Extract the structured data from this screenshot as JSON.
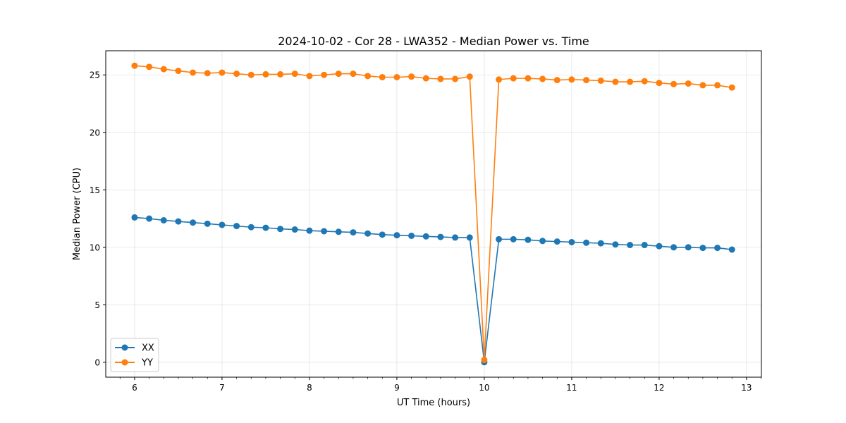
{
  "chart_data": {
    "type": "line",
    "title": "2024-10-02 - Cor 28 - LWA352 - Median Power vs. Time",
    "xlabel": "UT Time (hours)",
    "ylabel": "Median Power (CPU)",
    "xlim": [
      5.67,
      13.17
    ],
    "ylim": [
      -1.3,
      27.1
    ],
    "xticks": [
      6,
      7,
      8,
      9,
      10,
      11,
      12,
      13
    ],
    "yticks": [
      0,
      5,
      10,
      15,
      20,
      25
    ],
    "grid": true,
    "legend_position": "lower-left",
    "x": [
      6.0,
      6.1667,
      6.3333,
      6.5,
      6.6667,
      6.8333,
      7.0,
      7.1667,
      7.3333,
      7.5,
      7.6667,
      7.8333,
      8.0,
      8.1667,
      8.3333,
      8.5,
      8.6667,
      8.8333,
      9.0,
      9.1667,
      9.3333,
      9.5,
      9.6667,
      9.8333,
      10.0,
      10.1667,
      10.3333,
      10.5,
      10.6667,
      10.8333,
      11.0,
      11.1667,
      11.3333,
      11.5,
      11.6667,
      11.8333,
      12.0,
      12.1667,
      12.3333,
      12.5,
      12.6667,
      12.8333
    ],
    "series": [
      {
        "name": "XX",
        "color": "#1f77b4",
        "values": [
          12.6,
          12.5,
          12.35,
          12.25,
          12.15,
          12.05,
          11.95,
          11.85,
          11.75,
          11.7,
          11.6,
          11.55,
          11.45,
          11.4,
          11.35,
          11.3,
          11.2,
          11.1,
          11.05,
          11.0,
          10.95,
          10.9,
          10.85,
          10.85,
          0.0,
          10.7,
          10.7,
          10.65,
          10.55,
          10.5,
          10.45,
          10.4,
          10.35,
          10.25,
          10.2,
          10.2,
          10.1,
          10.0,
          10.0,
          9.95,
          9.95,
          9.8
        ]
      },
      {
        "name": "YY",
        "color": "#ff7f0e",
        "values": [
          25.8,
          25.7,
          25.5,
          25.35,
          25.2,
          25.15,
          25.2,
          25.1,
          25.0,
          25.05,
          25.05,
          25.1,
          24.9,
          25.0,
          25.1,
          25.1,
          24.9,
          24.8,
          24.8,
          24.85,
          24.7,
          24.65,
          24.65,
          24.85,
          0.2,
          24.6,
          24.7,
          24.7,
          24.65,
          24.55,
          24.6,
          24.55,
          24.5,
          24.4,
          24.4,
          24.45,
          24.3,
          24.2,
          24.25,
          24.1,
          24.1,
          23.9
        ]
      }
    ]
  }
}
